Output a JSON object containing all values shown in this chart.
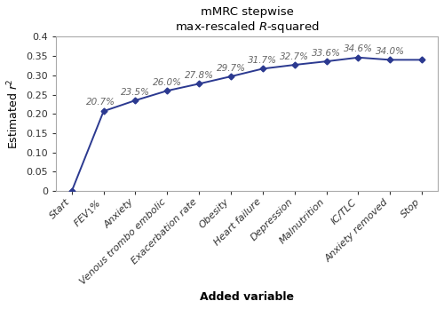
{
  "title": "mMRC stepwise\nmax-rescaled $\\it{R}$-squared",
  "xlabel": "Added variable",
  "ylabel": "Estimated $\\it{r}$$^2$",
  "x_labels": [
    "Start",
    "FEV$_1$%",
    "Anxiety",
    "Venous trombo embolic",
    "Exacerbation rate",
    "Obesity",
    "Heart failure",
    "Depression",
    "Malnutrition",
    "IC/TLC",
    "Anxiety removed",
    "Stop"
  ],
  "y_values": [
    0.0,
    0.207,
    0.235,
    0.26,
    0.278,
    0.297,
    0.317,
    0.327,
    0.336,
    0.346,
    0.34,
    0.34
  ],
  "annotations": [
    "",
    "20.7%",
    "23.5%",
    "26.0%",
    "27.8%",
    "29.7%",
    "31.7%",
    "32.7%",
    "33.6%",
    "34.6%",
    "34.0%",
    ""
  ],
  "line_color": "#2B3990",
  "marker_color": "#2B3990",
  "annotation_color": "#666666",
  "background_color": "#ffffff",
  "ylim": [
    0,
    0.4
  ],
  "yticks": [
    0,
    0.05,
    0.1,
    0.15,
    0.2,
    0.25,
    0.3,
    0.35,
    0.4
  ],
  "ytick_labels": [
    "0",
    "0.05",
    "0.10",
    "0.15",
    "0.20",
    "0.25",
    "0.30",
    "0.35",
    "0.4"
  ],
  "title_fontsize": 9.5,
  "label_fontsize": 9,
  "tick_fontsize": 8,
  "annot_fontsize": 7.5,
  "xlabel_fontweight": "bold"
}
